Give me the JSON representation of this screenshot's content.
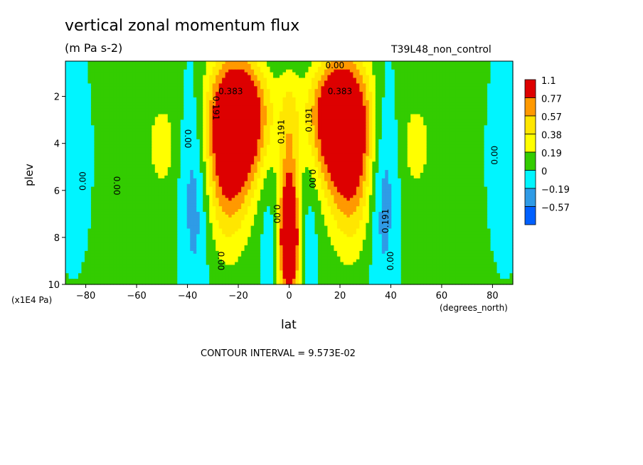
{
  "chart_data": {
    "type": "heatmap",
    "title": "vertical zonal momentum flux",
    "units": "(m Pa s-2)",
    "dataset": "T39L48_non_control",
    "xlabel": "lat",
    "xlabel_units": "(degrees_north)",
    "ylabel": "plev",
    "ylabel_units": "(x1E4 Pa)",
    "contour_interval_text": "CONTOUR INTERVAL = 9.573E-02",
    "xlim": [
      -88,
      88
    ],
    "ylim": [
      10,
      0.5
    ],
    "x_ticks": [
      -80,
      -60,
      -40,
      -20,
      0,
      20,
      40,
      60,
      80
    ],
    "y_ticks": [
      2,
      4,
      6,
      8,
      10
    ],
    "colorbar": {
      "levels": [
        "1.1",
        "0.77",
        "0.57",
        "0.38",
        "0.19",
        "0",
        "−0.19",
        "−0.57"
      ],
      "colors": [
        "#ff0000",
        "#ff8c00",
        "#ffd700",
        "#ffff00",
        "#00d000",
        "#00ffff",
        "#3399ff",
        "#0055ff"
      ],
      "fill_colors": [
        "#dd0000",
        "#ff9900",
        "#ffe600",
        "#ffff00",
        "#33cc00",
        "#00f5ff",
        "#2f9be6",
        "#0060ff"
      ]
    },
    "contour_labels": [
      {
        "text": "0.00",
        "lat": 18,
        "p": 0.8,
        "rot": 0
      },
      {
        "text": "0.383",
        "lat": -23,
        "p": 1.9,
        "rot": 0
      },
      {
        "text": "0.383",
        "lat": 20,
        "p": 1.9,
        "rot": 0
      },
      {
        "text": "0.191",
        "lat": -30,
        "p": 2.5,
        "rot": 90
      },
      {
        "text": "0.191",
        "lat": -2,
        "p": 3.5,
        "rot": -90
      },
      {
        "text": "0.191",
        "lat": 9,
        "p": 3.0,
        "rot": -90
      },
      {
        "text": "0.00",
        "lat": -41,
        "p": 3.8,
        "rot": 90
      },
      {
        "text": "0.00",
        "lat": 8,
        "p": 5.5,
        "rot": 90
      },
      {
        "text": "0.00",
        "lat": -80,
        "p": 5.6,
        "rot": -90
      },
      {
        "text": "0.00",
        "lat": -69,
        "p": 5.8,
        "rot": 90
      },
      {
        "text": "0.00",
        "lat": 82,
        "p": 4.5,
        "rot": -90
      },
      {
        "text": "0.00",
        "lat": -6,
        "p": 7.0,
        "rot": 90
      },
      {
        "text": "0.191",
        "lat": 39,
        "p": 7.3,
        "rot": -90
      },
      {
        "text": "0.00",
        "lat": -28,
        "p": 9.0,
        "rot": 90
      },
      {
        "text": "0.00",
        "lat": 41,
        "p": 9.0,
        "rot": -90
      }
    ],
    "features": [
      {
        "lat": -20,
        "p": 2.9,
        "sx": 8,
        "sy": 1.9,
        "amp": 1.3
      },
      {
        "lat": 20,
        "p": 2.9,
        "sx": 8,
        "sy": 1.9,
        "amp": 1.3
      },
      {
        "lat": -24,
        "p": 5.5,
        "sx": 6,
        "sy": 2.2,
        "amp": 0.55
      },
      {
        "lat": 24,
        "p": 5.5,
        "sx": 6,
        "sy": 2.2,
        "amp": 0.55
      },
      {
        "lat": 0,
        "p": 8.2,
        "sx": 2.6,
        "sy": 1.6,
        "amp": 1.3
      },
      {
        "lat": 0,
        "p": 5.0,
        "sx": 2.8,
        "sy": 3.0,
        "amp": 0.45
      },
      {
        "lat": -50,
        "p": 4.1,
        "sx": 4,
        "sy": 1.3,
        "amp": 0.25
      },
      {
        "lat": 50,
        "p": 4.1,
        "sx": 4,
        "sy": 1.3,
        "amp": 0.25
      },
      {
        "lat": -37,
        "p": 6.0,
        "sx": 4,
        "sy": 3.5,
        "amp": -0.35
      },
      {
        "lat": 37,
        "p": 6.0,
        "sx": 4,
        "sy": 3.5,
        "amp": -0.35
      },
      {
        "lat": -8,
        "p": 7.5,
        "sx": 3,
        "sy": 2.5,
        "amp": -0.15
      },
      {
        "lat": 8,
        "p": 7.5,
        "sx": 3,
        "sy": 2.5,
        "amp": -0.15
      },
      {
        "lat": -85,
        "p": 4.5,
        "sx": 6,
        "sy": 4,
        "amp": -0.12
      },
      {
        "lat": 85,
        "p": 4.5,
        "sx": 6,
        "sy": 4,
        "amp": -0.12
      },
      {
        "lat": 0,
        "p": 0.6,
        "sx": 15,
        "sy": 0.6,
        "amp": -0.1
      }
    ]
  }
}
